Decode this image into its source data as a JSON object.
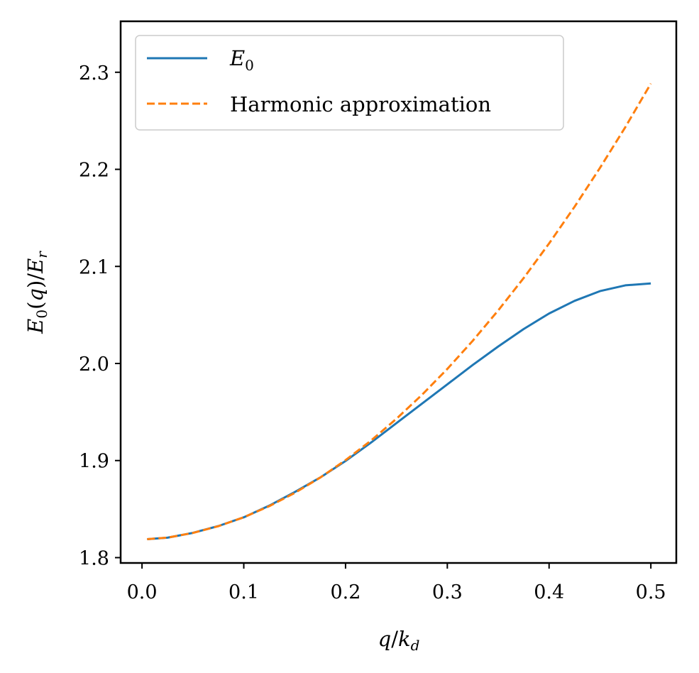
{
  "chart_data": {
    "type": "line",
    "title": "",
    "xlabel": "q/k_d",
    "ylabel": "E_0(q)/E_r",
    "xlim": [
      -0.021,
      0.525
    ],
    "ylim": [
      1.7945,
      2.3525
    ],
    "xticks": [
      0.0,
      0.1,
      0.2,
      0.3,
      0.4,
      0.5
    ],
    "xtick_labels": [
      "0.0",
      "0.1",
      "0.2",
      "0.3",
      "0.4",
      "0.5"
    ],
    "yticks": [
      1.8,
      1.9,
      2.0,
      2.1,
      2.2,
      2.3
    ],
    "ytick_labels": [
      "1.8",
      "1.9",
      "2.0",
      "2.1",
      "2.2",
      "2.3"
    ],
    "grid": false,
    "legend_position": "top-left",
    "series": [
      {
        "name": "E_0",
        "color": "#1f77b4",
        "dash": "solid",
        "x": [
          0.005,
          0.025,
          0.05,
          0.075,
          0.1,
          0.125,
          0.15,
          0.175,
          0.2,
          0.225,
          0.25,
          0.275,
          0.3,
          0.325,
          0.35,
          0.375,
          0.4,
          0.425,
          0.45,
          0.475,
          0.5
        ],
        "y": [
          1.819,
          1.8205,
          1.8255,
          1.8325,
          1.8415,
          1.8535,
          1.8675,
          1.8825,
          1.8995,
          1.9185,
          1.9385,
          1.9585,
          1.9785,
          1.9985,
          2.0175,
          2.0355,
          2.0515,
          2.0645,
          2.0745,
          2.0805,
          2.0825
        ]
      },
      {
        "name": "Harmonic approximation",
        "color": "#ff7f0e",
        "dash": "dashed",
        "x": [
          0.005,
          0.025,
          0.05,
          0.075,
          0.1,
          0.125,
          0.15,
          0.175,
          0.2,
          0.225,
          0.25,
          0.275,
          0.3,
          0.325,
          0.35,
          0.375,
          0.4,
          0.425,
          0.45,
          0.475,
          0.5
        ],
        "y": [
          1.819,
          1.8206,
          1.8254,
          1.8324,
          1.8416,
          1.853,
          1.8666,
          1.8824,
          1.9004,
          1.9206,
          1.943,
          1.9676,
          1.9944,
          2.0234,
          2.0546,
          2.088,
          2.1236,
          2.1614,
          2.2014,
          2.2436,
          2.2883
        ]
      }
    ]
  }
}
